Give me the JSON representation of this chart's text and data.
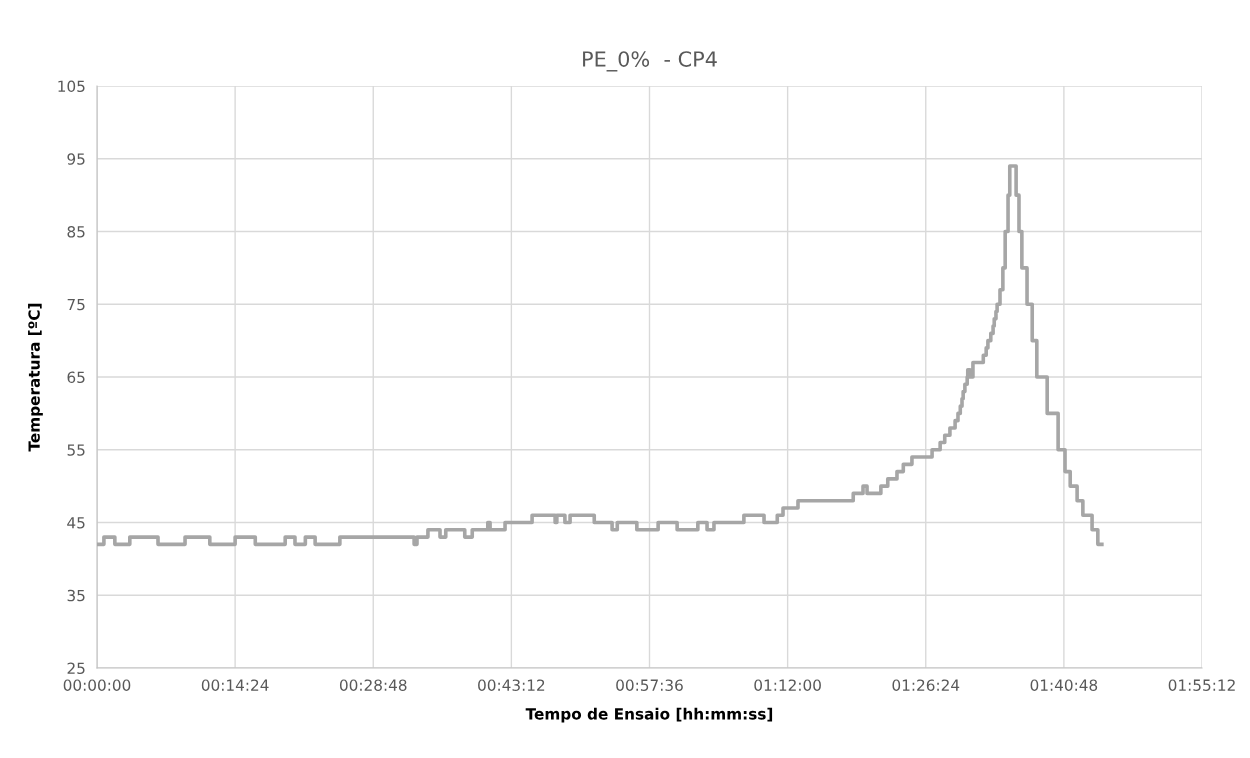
{
  "chart_data": {
    "type": "step",
    "title": "PE_0%  - CP4",
    "xlabel": "Tempo de Ensaio [hh:mm:ss]",
    "ylabel": "Temperatura [ºC]",
    "series": [
      {
        "color": "#a6a6a6",
        "x": [
          0,
          0.012,
          0.031,
          0.057,
          0.106,
          0.153,
          0.196,
          0.24,
          0.275,
          0.327,
          0.344,
          0.362,
          0.379,
          0.422,
          0.551,
          0.556,
          0.575,
          0.596,
          0.606,
          0.639,
          0.652,
          0.679,
          0.683,
          0.709,
          0.756,
          0.796,
          0.799,
          0.813,
          0.822,
          0.864,
          0.895,
          0.904,
          0.938,
          0.975,
          1.008,
          1.044,
          1.06,
          1.072,
          1.124,
          1.159,
          1.182,
          1.192,
          1.218,
          1.314,
          1.331,
          1.338,
          1.362,
          1.374,
          1.39,
          1.401,
          1.416,
          1.451,
          1.465,
          1.473,
          1.482,
          1.491,
          1.496,
          1.5,
          1.503,
          1.505,
          1.508,
          1.512,
          1.513,
          1.517,
          1.522,
          1.54,
          1.545,
          1.548,
          1.553,
          1.557,
          1.559,
          1.562,
          1.564,
          1.569,
          1.574,
          1.578,
          1.583,
          1.586,
          1.597,
          1.602,
          1.607,
          1.616,
          1.625,
          1.633,
          1.651,
          1.67,
          1.682,
          1.691,
          1.703,
          1.713,
          1.729,
          1.739,
          1.746
        ],
        "values": [
          42,
          43,
          42,
          43,
          42,
          43,
          42,
          43,
          42,
          43,
          42,
          43,
          42,
          43,
          42,
          43,
          44,
          43,
          44,
          43,
          44,
          45,
          44,
          45,
          46,
          45,
          46,
          45,
          46,
          45,
          44,
          45,
          44,
          45,
          44,
          45,
          44,
          45,
          46,
          45,
          46,
          47,
          48,
          49,
          50,
          49,
          50,
          51,
          52,
          53,
          54,
          55,
          56,
          57,
          58,
          59,
          60,
          61,
          62,
          63,
          64,
          65,
          66,
          65,
          67,
          68,
          69,
          70,
          71,
          72,
          73,
          74,
          75,
          77,
          80,
          85,
          90,
          94,
          90,
          85,
          80,
          75,
          70,
          65,
          60,
          55,
          52,
          50,
          48,
          46,
          44,
          42,
          42
        ]
      }
    ],
    "xlim": [
      0,
      1.92
    ],
    "xticks": [
      {
        "value": 0,
        "label": "00:00:00"
      },
      {
        "value": 0.24,
        "label": "00:14:24"
      },
      {
        "value": 0.48,
        "label": "00:28:48"
      },
      {
        "value": 0.72,
        "label": "00:43:12"
      },
      {
        "value": 0.96,
        "label": "00:57:36"
      },
      {
        "value": 1.2,
        "label": "01:12:00"
      },
      {
        "value": 1.44,
        "label": "01:26:24"
      },
      {
        "value": 1.68,
        "label": "01:40:48"
      },
      {
        "value": 1.92,
        "label": "01:55:12"
      }
    ],
    "ylim": [
      25,
      105
    ],
    "yticks": [
      25,
      35,
      45,
      55,
      65,
      75,
      85,
      95,
      105
    ],
    "grid": true
  }
}
